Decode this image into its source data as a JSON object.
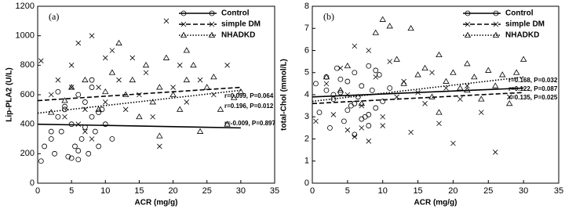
{
  "chart_data": [
    {
      "type": "scatter",
      "panel_label": "(a)",
      "xlabel": "ACR (mg/g)",
      "ylabel": "Lip-PLA2 (U/L)",
      "xlim": [
        0,
        35
      ],
      "xticks": [
        0,
        5,
        10,
        15,
        20,
        25,
        30,
        35
      ],
      "ylim": [
        0,
        1200
      ],
      "yticks": [
        0,
        200,
        400,
        600,
        800,
        1000,
        1200
      ],
      "series": [
        {
          "name": "Control",
          "marker": "circle",
          "line_style": "solid",
          "color": "#000000",
          "x": [
            0.5,
            1,
            2,
            2.5,
            3,
            3.5,
            4,
            4.5,
            5,
            5.5,
            6,
            6,
            6.5,
            7,
            7.5,
            8,
            8,
            8.5,
            9,
            9.5,
            10,
            11,
            3,
            5,
            7,
            4,
            6,
            9,
            2,
            8
          ],
          "values": [
            150,
            250,
            300,
            200,
            450,
            350,
            500,
            180,
            400,
            250,
            600,
            160,
            300,
            550,
            200,
            450,
            650,
            350,
            250,
            500,
            400,
            300,
            620,
            170,
            380,
            520,
            220,
            480,
            350,
            700
          ],
          "trend": {
            "x": [
              0,
              30
            ],
            "values": [
              400,
              375
            ]
          },
          "annotation": "r=-0.009, P=0.897"
        },
        {
          "name": "simple DM",
          "marker": "cross",
          "line_style": "dashed",
          "color": "#000000",
          "x": [
            0.5,
            2,
            3,
            4,
            5,
            6,
            7,
            8,
            9,
            10,
            11,
            12,
            13,
            14,
            15,
            16,
            17,
            18,
            19,
            20,
            21,
            22,
            24,
            26,
            28,
            6,
            8,
            10,
            5,
            7
          ],
          "values": [
            830,
            600,
            700,
            450,
            800,
            950,
            350,
            1000,
            650,
            550,
            900,
            700,
            500,
            850,
            600,
            750,
            450,
            250,
            1100,
            650,
            800,
            550,
            700,
            600,
            800,
            400,
            300,
            850,
            650,
            500
          ],
          "trend": {
            "x": [
              0,
              30
            ],
            "values": [
              560,
              650
            ]
          },
          "annotation": "r=0.099, P=0.064"
        },
        {
          "name": "NHADKD",
          "marker": "triangle",
          "line_style": "dotted",
          "color": "#000000",
          "x": [
            2,
            4,
            5,
            7,
            9,
            10,
            12,
            13,
            14,
            15,
            16,
            17,
            18,
            19,
            20,
            21,
            22,
            23,
            24,
            25,
            26,
            27,
            28,
            29,
            30,
            11,
            18,
            22
          ],
          "values": [
            480,
            560,
            650,
            700,
            500,
            620,
            950,
            600,
            700,
            450,
            800,
            550,
            650,
            850,
            600,
            500,
            700,
            800,
            350,
            650,
            720,
            500,
            400,
            580,
            620,
            750,
            320,
            900
          ],
          "trend": {
            "x": [
              0,
              30
            ],
            "values": [
              475,
              630
            ]
          },
          "annotation": "r=0.196, P=0.012"
        }
      ]
    },
    {
      "type": "scatter",
      "panel_label": "(b)",
      "xlabel": "ACR (mg/g)",
      "ylabel": "total-Chol (mmol/L)",
      "xlim": [
        0,
        35
      ],
      "xticks": [
        0,
        5,
        10,
        15,
        20,
        25,
        30,
        35
      ],
      "ylim": [
        0,
        8
      ],
      "yticks": [
        0,
        1,
        2,
        3,
        4,
        5,
        6,
        7,
        8
      ],
      "series": [
        {
          "name": "Control",
          "marker": "circle",
          "line_style": "solid",
          "color": "#000000",
          "x": [
            0.5,
            1,
            2,
            2.5,
            3,
            3.5,
            4,
            4.5,
            5,
            5.5,
            6,
            6,
            6.5,
            7,
            7.5,
            8,
            8,
            8.5,
            9,
            9.5,
            10,
            11,
            3,
            5,
            7,
            4,
            6,
            9,
            2,
            8
          ],
          "values": [
            4.5,
            3.2,
            4.8,
            2.5,
            3.8,
            5.2,
            4.1,
            2.8,
            4.6,
            3.5,
            5.0,
            2.2,
            3.9,
            4.4,
            3.0,
            5.3,
            2.6,
            4.2,
            3.4,
            4.9,
            3.7,
            4.3,
            4.0,
            3.3,
            2.9,
            4.7,
            3.6,
            5.1,
            4.2,
            3.1
          ],
          "trend": {
            "x": [
              0,
              30
            ],
            "values": [
              3.9,
              4.3
            ]
          },
          "annotation": "r=0.122, P=0.087"
        },
        {
          "name": "simple DM",
          "marker": "cross",
          "line_style": "dashed",
          "color": "#000000",
          "x": [
            0.5,
            2,
            3,
            4,
            5,
            6,
            7,
            8,
            9,
            10,
            11,
            12,
            13,
            14,
            15,
            16,
            17,
            18,
            19,
            20,
            21,
            22,
            24,
            26,
            28,
            6,
            8,
            10,
            5,
            7
          ],
          "values": [
            2.8,
            4.5,
            3.1,
            5.2,
            2.4,
            6.2,
            3.5,
            1.9,
            4.8,
            2.6,
            5.5,
            3.9,
            4.6,
            2.3,
            4.1,
            3.6,
            5.0,
            2.7,
            4.3,
            1.8,
            3.8,
            4.4,
            3.2,
            1.4,
            3.9,
            2.1,
            6.0,
            3.0,
            4.0,
            2.5
          ],
          "trend": {
            "x": [
              0,
              30
            ],
            "values": [
              3.6,
              4.1
            ]
          },
          "annotation": "r=0.135, P=0.025"
        },
        {
          "name": "NHADKD",
          "marker": "triangle",
          "line_style": "dotted",
          "color": "#000000",
          "x": [
            2,
            4,
            5,
            7,
            9,
            10,
            12,
            13,
            14,
            15,
            16,
            17,
            18,
            19,
            20,
            21,
            22,
            23,
            24,
            25,
            26,
            27,
            28,
            29,
            30,
            11,
            18,
            22
          ],
          "values": [
            4.8,
            4.2,
            5.3,
            3.6,
            6.8,
            7.4,
            5.6,
            4.5,
            7.0,
            4.9,
            5.2,
            3.9,
            5.8,
            4.6,
            5.0,
            4.3,
            5.4,
            4.8,
            3.8,
            5.1,
            4.4,
            4.9,
            3.6,
            5.0,
            5.6,
            7.1,
            3.2,
            4.2
          ],
          "trend": {
            "x": [
              0,
              30
            ],
            "values": [
              3.7,
              4.8
            ]
          },
          "annotation": "r=0.168, P=0.032"
        }
      ]
    }
  ]
}
